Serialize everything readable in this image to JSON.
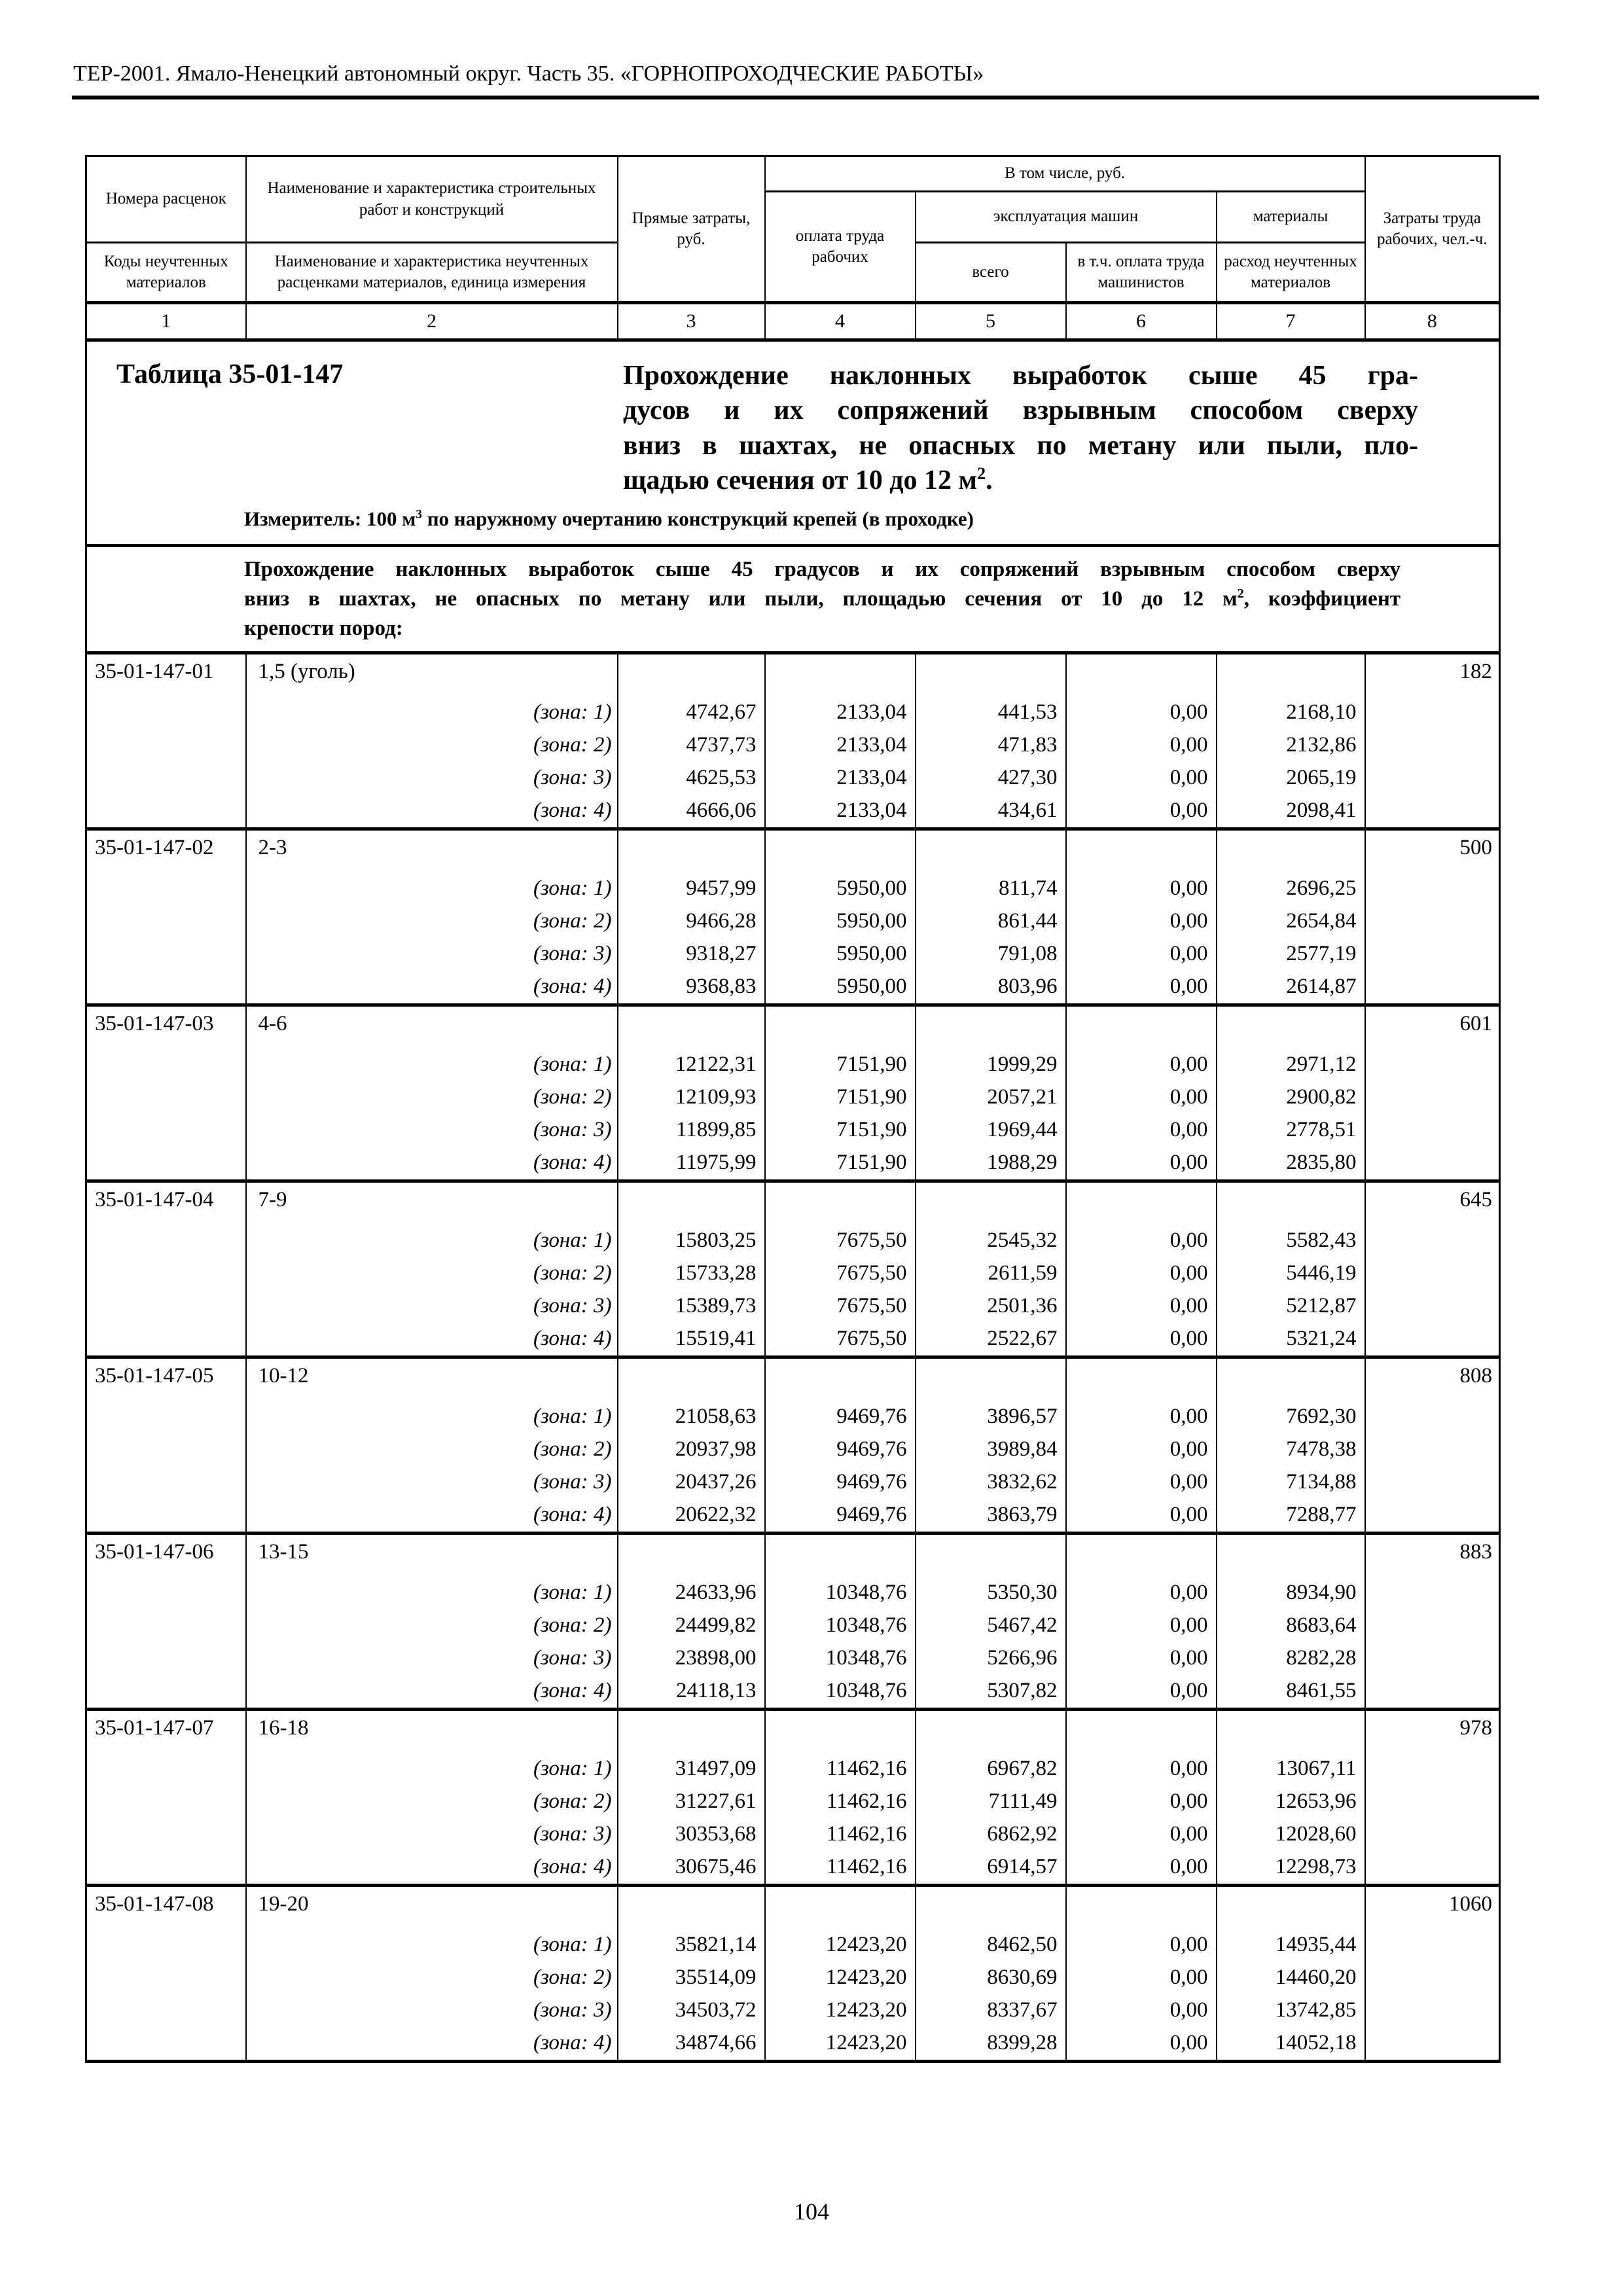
{
  "page": {
    "header": "ТЕР-2001. Ямало-Ненецкий автономный округ. Часть 35. «ГОРНОПРОХОДЧЕСКИЕ РАБОТЫ»",
    "page_number": "104"
  },
  "table_header": {
    "col1_top": "Номера расценок",
    "col1_bottom": "Коды неучтенных материалов",
    "col2_top": "Наименование и характеристика строительных работ и конструкций",
    "col2_bottom": "Наименование и характеристика неучтенных расценками материалов, единица измерения",
    "col3": "Прямые затраты, руб.",
    "group_col4_7": "В том числе, руб.",
    "col4": "оплата труда рабочих",
    "machines_group": "эксплуатация машин",
    "col5": "всего",
    "col6": "в т.ч. оплата труда машинистов",
    "materials_group": "материалы",
    "col7": "расход неучтенных материалов",
    "col8": "Затраты труда рабочих, чел.-ч.",
    "numbers": [
      "1",
      "2",
      "3",
      "4",
      "5",
      "6",
      "7",
      "8"
    ]
  },
  "title_block": {
    "table_label": "Таблица 35-01-147",
    "title_lines": [
      {
        "text": "Прохождение наклонных выработок сыше 45 гра-",
        "sup": "",
        "after": ""
      },
      {
        "text": "дусов и их сопряжений взрывным способом сверху",
        "sup": "",
        "after": ""
      },
      {
        "text": "вниз в шахтах, не опасных по метану или пыли, пло-",
        "sup": "",
        "after": ""
      },
      {
        "text": "щадью сечения от 10 до 12 м",
        "sup": "2",
        "after": "."
      }
    ],
    "measurer": {
      "pre": "Измеритель: 100 м",
      "sup": "3",
      "post": " по наружному очертанию конструкций крепей (в проходке)"
    }
  },
  "section": {
    "lines": [
      {
        "text": "Прохождение наклонных выработок сыше 45 градусов и их сопряжений взрывным способом сверху",
        "sup": "",
        "after": ""
      },
      {
        "text": "вниз в шахтах, не опасных по метану или пыли, площадью сечения от 10 до 12 м",
        "sup": "2",
        "after": ", коэффициент"
      },
      {
        "text": "крепости пород:",
        "sup": "",
        "after": ""
      }
    ]
  },
  "rows": [
    {
      "code": "35-01-147-01",
      "name": "1,5 (уголь)",
      "labor": "182",
      "zones": [
        {
          "label": "(зона: 1)",
          "direct": "4742,67",
          "wages": "2133,04",
          "machines": "441,53",
          "machinists": "0,00",
          "materials": "2168,10"
        },
        {
          "label": "(зона: 2)",
          "direct": "4737,73",
          "wages": "2133,04",
          "machines": "471,83",
          "machinists": "0,00",
          "materials": "2132,86"
        },
        {
          "label": "(зона: 3)",
          "direct": "4625,53",
          "wages": "2133,04",
          "machines": "427,30",
          "machinists": "0,00",
          "materials": "2065,19"
        },
        {
          "label": "(зона: 4)",
          "direct": "4666,06",
          "wages": "2133,04",
          "machines": "434,61",
          "machinists": "0,00",
          "materials": "2098,41"
        }
      ]
    },
    {
      "code": "35-01-147-02",
      "name": "2-3",
      "labor": "500",
      "zones": [
        {
          "label": "(зона: 1)",
          "direct": "9457,99",
          "wages": "5950,00",
          "machines": "811,74",
          "machinists": "0,00",
          "materials": "2696,25"
        },
        {
          "label": "(зона: 2)",
          "direct": "9466,28",
          "wages": "5950,00",
          "machines": "861,44",
          "machinists": "0,00",
          "materials": "2654,84"
        },
        {
          "label": "(зона: 3)",
          "direct": "9318,27",
          "wages": "5950,00",
          "machines": "791,08",
          "machinists": "0,00",
          "materials": "2577,19"
        },
        {
          "label": "(зона: 4)",
          "direct": "9368,83",
          "wages": "5950,00",
          "machines": "803,96",
          "machinists": "0,00",
          "materials": "2614,87"
        }
      ]
    },
    {
      "code": "35-01-147-03",
      "name": "4-6",
      "labor": "601",
      "zones": [
        {
          "label": "(зона: 1)",
          "direct": "12122,31",
          "wages": "7151,90",
          "machines": "1999,29",
          "machinists": "0,00",
          "materials": "2971,12"
        },
        {
          "label": "(зона: 2)",
          "direct": "12109,93",
          "wages": "7151,90",
          "machines": "2057,21",
          "machinists": "0,00",
          "materials": "2900,82"
        },
        {
          "label": "(зона: 3)",
          "direct": "11899,85",
          "wages": "7151,90",
          "machines": "1969,44",
          "machinists": "0,00",
          "materials": "2778,51"
        },
        {
          "label": "(зона: 4)",
          "direct": "11975,99",
          "wages": "7151,90",
          "machines": "1988,29",
          "machinists": "0,00",
          "materials": "2835,80"
        }
      ]
    },
    {
      "code": "35-01-147-04",
      "name": "7-9",
      "labor": "645",
      "zones": [
        {
          "label": "(зона: 1)",
          "direct": "15803,25",
          "wages": "7675,50",
          "machines": "2545,32",
          "machinists": "0,00",
          "materials": "5582,43"
        },
        {
          "label": "(зона: 2)",
          "direct": "15733,28",
          "wages": "7675,50",
          "machines": "2611,59",
          "machinists": "0,00",
          "materials": "5446,19"
        },
        {
          "label": "(зона: 3)",
          "direct": "15389,73",
          "wages": "7675,50",
          "machines": "2501,36",
          "machinists": "0,00",
          "materials": "5212,87"
        },
        {
          "label": "(зона: 4)",
          "direct": "15519,41",
          "wages": "7675,50",
          "machines": "2522,67",
          "machinists": "0,00",
          "materials": "5321,24"
        }
      ]
    },
    {
      "code": "35-01-147-05",
      "name": "10-12",
      "labor": "808",
      "zones": [
        {
          "label": "(зона: 1)",
          "direct": "21058,63",
          "wages": "9469,76",
          "machines": "3896,57",
          "machinists": "0,00",
          "materials": "7692,30"
        },
        {
          "label": "(зона: 2)",
          "direct": "20937,98",
          "wages": "9469,76",
          "machines": "3989,84",
          "machinists": "0,00",
          "materials": "7478,38"
        },
        {
          "label": "(зона: 3)",
          "direct": "20437,26",
          "wages": "9469,76",
          "machines": "3832,62",
          "machinists": "0,00",
          "materials": "7134,88"
        },
        {
          "label": "(зона: 4)",
          "direct": "20622,32",
          "wages": "9469,76",
          "machines": "3863,79",
          "machinists": "0,00",
          "materials": "7288,77"
        }
      ]
    },
    {
      "code": "35-01-147-06",
      "name": "13-15",
      "labor": "883",
      "zones": [
        {
          "label": "(зона: 1)",
          "direct": "24633,96",
          "wages": "10348,76",
          "machines": "5350,30",
          "machinists": "0,00",
          "materials": "8934,90"
        },
        {
          "label": "(зона: 2)",
          "direct": "24499,82",
          "wages": "10348,76",
          "machines": "5467,42",
          "machinists": "0,00",
          "materials": "8683,64"
        },
        {
          "label": "(зона: 3)",
          "direct": "23898,00",
          "wages": "10348,76",
          "machines": "5266,96",
          "machinists": "0,00",
          "materials": "8282,28"
        },
        {
          "label": "(зона: 4)",
          "direct": "24118,13",
          "wages": "10348,76",
          "machines": "5307,82",
          "machinists": "0,00",
          "materials": "8461,55"
        }
      ]
    },
    {
      "code": "35-01-147-07",
      "name": "16-18",
      "labor": "978",
      "zones": [
        {
          "label": "(зона: 1)",
          "direct": "31497,09",
          "wages": "11462,16",
          "machines": "6967,82",
          "machinists": "0,00",
          "materials": "13067,11"
        },
        {
          "label": "(зона: 2)",
          "direct": "31227,61",
          "wages": "11462,16",
          "machines": "7111,49",
          "machinists": "0,00",
          "materials": "12653,96"
        },
        {
          "label": "(зона: 3)",
          "direct": "30353,68",
          "wages": "11462,16",
          "machines": "6862,92",
          "machinists": "0,00",
          "materials": "12028,60"
        },
        {
          "label": "(зона: 4)",
          "direct": "30675,46",
          "wages": "11462,16",
          "machines": "6914,57",
          "machinists": "0,00",
          "materials": "12298,73"
        }
      ]
    },
    {
      "code": "35-01-147-08",
      "name": "19-20",
      "labor": "1060",
      "zones": [
        {
          "label": "(зона: 1)",
          "direct": "35821,14",
          "wages": "12423,20",
          "machines": "8462,50",
          "machinists": "0,00",
          "materials": "14935,44"
        },
        {
          "label": "(зона: 2)",
          "direct": "35514,09",
          "wages": "12423,20",
          "machines": "8630,69",
          "machinists": "0,00",
          "materials": "14460,20"
        },
        {
          "label": "(зона: 3)",
          "direct": "34503,72",
          "wages": "12423,20",
          "machines": "8337,67",
          "machinists": "0,00",
          "materials": "13742,85"
        },
        {
          "label": "(зона: 4)",
          "direct": "34874,66",
          "wages": "12423,20",
          "machines": "8399,28",
          "machinists": "0,00",
          "materials": "14052,18"
        }
      ]
    }
  ]
}
